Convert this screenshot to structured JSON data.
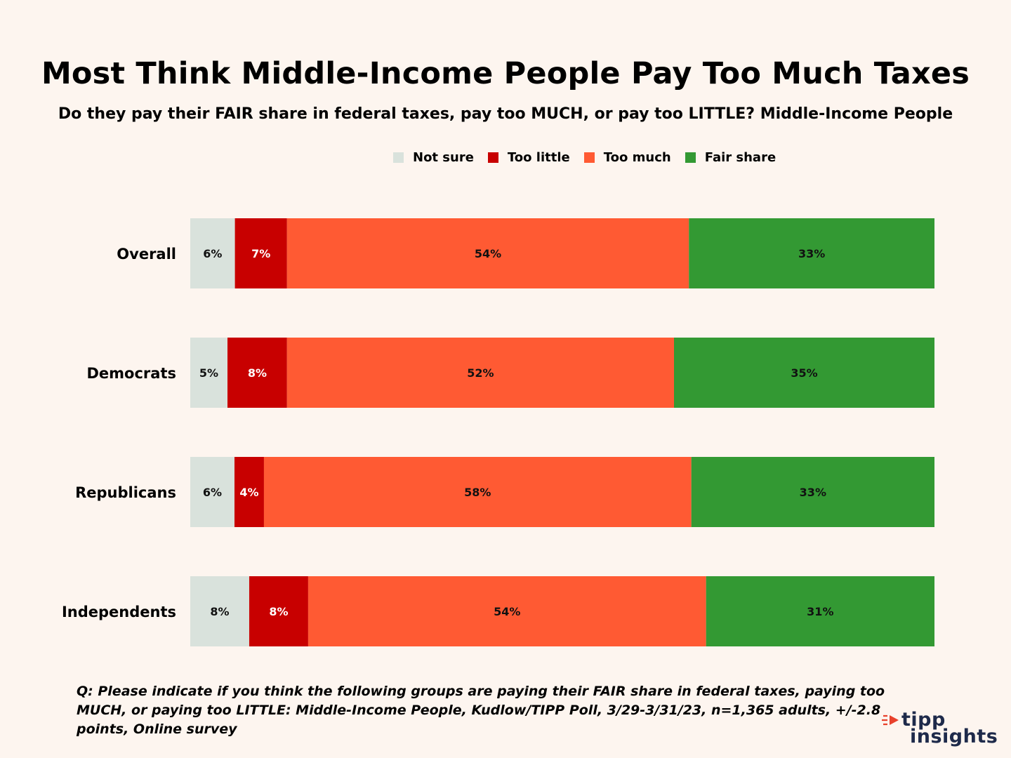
{
  "chart_data": {
    "type": "bar",
    "orientation": "horizontal",
    "stacked": true,
    "title": "Most Think Middle-Income People Pay Too Much Taxes",
    "subtitle": "Do they pay their FAIR share in federal taxes, pay too MUCH, or pay too LITTLE? Middle-Income People",
    "categories": [
      "Overall",
      "Democrats",
      "Republicans",
      "Independents"
    ],
    "series": [
      {
        "name": "Not sure",
        "color": "#d9e2dc",
        "label_color": "#111111",
        "values": [
          6,
          5,
          6,
          8
        ],
        "labels": [
          "6%",
          "5%",
          "6%",
          "8%"
        ]
      },
      {
        "name": "Too little",
        "color": "#c80000",
        "label_color": "#ffffff",
        "values": [
          7,
          8,
          4,
          8
        ],
        "labels": [
          "7%",
          "8%",
          "4%",
          "8%"
        ]
      },
      {
        "name": "Too much",
        "color": "#ff5a33",
        "label_color": "#111111",
        "values": [
          54,
          52,
          58,
          54
        ],
        "labels": [
          "54%",
          "52%",
          "58%",
          "54%"
        ]
      },
      {
        "name": "Fair share",
        "color": "#339933",
        "label_color": "#111111",
        "values": [
          33,
          35,
          33,
          31
        ],
        "labels": [
          "33%",
          "35%",
          "33%",
          "31%"
        ]
      }
    ],
    "legend": [
      "Not sure",
      "Too little",
      "Too much",
      "Fair share"
    ],
    "legend_position": "top",
    "xlim": [
      0,
      100
    ],
    "grid": false
  },
  "footnote": "Q: Please indicate if you think the following groups are paying their FAIR share in federal taxes, paying too MUCH, or paying too LITTLE: Middle-Income People, Kudlow/TIPP Poll, 3/29-3/31/23, n=1,365 adults, +/-2.8 points, Online survey",
  "logo": {
    "line1": "tipp",
    "line2": "insights"
  },
  "colors": {
    "background": "#fdf5ef",
    "logo_text": "#1e2a4a",
    "logo_accent": "#e8412c"
  }
}
